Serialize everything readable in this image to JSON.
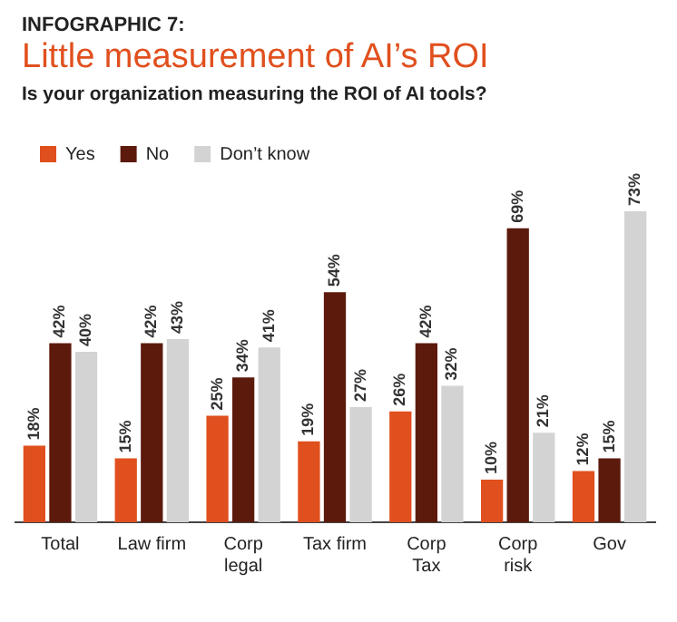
{
  "chart_data": {
    "type": "bar",
    "title": "Little measurement of AI’s ROI",
    "subtitle": "Is your organization measuring the ROI of AI tools?",
    "annotations": [
      "INFOGRAPHIC 7:"
    ],
    "categories": [
      "Total",
      "Law firm",
      "Corp legal",
      "Tax firm",
      "Corp Tax",
      "Corp risk",
      "Gov"
    ],
    "series": [
      {
        "name": "Yes",
        "color": "#e0501e",
        "values": [
          18,
          15,
          25,
          19,
          26,
          10,
          12
        ],
        "value_labels": [
          "18%",
          "15%",
          "25%",
          "19%",
          "26%",
          "10%",
          "12%"
        ]
      },
      {
        "name": "No",
        "color": "#5c1a0c",
        "values": [
          42,
          42,
          34,
          54,
          42,
          69,
          15
        ],
        "value_labels": [
          "42%",
          "42%",
          "34%",
          "54%",
          "42%",
          "69%",
          "15%"
        ]
      },
      {
        "name": "Don’t know",
        "color": "#d3d3d3",
        "values": [
          40,
          43,
          41,
          27,
          32,
          21,
          73
        ],
        "value_labels": [
          "40%",
          "43%",
          "41%",
          "27%",
          "32%",
          "21%",
          "73%"
        ]
      }
    ],
    "legend": "top left",
    "grid": false
  }
}
